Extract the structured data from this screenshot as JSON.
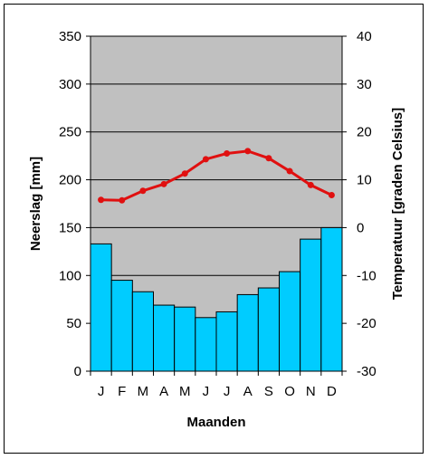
{
  "chart_data": {
    "type": "bar+line",
    "categories": [
      "J",
      "F",
      "M",
      "A",
      "M",
      "J",
      "J",
      "A",
      "S",
      "O",
      "N",
      "D"
    ],
    "series": [
      {
        "name": "Neerslag",
        "type": "bar",
        "axis": "left",
        "color": "#00CCFF",
        "values": [
          133,
          95,
          83,
          69,
          67,
          56,
          62,
          80,
          87,
          104,
          138,
          150
        ]
      },
      {
        "name": "Temperatuur",
        "type": "line",
        "axis": "right",
        "color": "#E01010",
        "values": [
          5.8,
          5.7,
          7.7,
          9.1,
          11.3,
          14.3,
          15.5,
          16.0,
          14.5,
          11.8,
          8.9,
          6.8
        ]
      }
    ],
    "xlabel": "Maanden",
    "ylabel_left": "Neerslag [mm]",
    "ylabel_right": "Temperatuur [graden Celsius]",
    "ylim_left": [
      0,
      350
    ],
    "ylim_right": [
      -30,
      40
    ],
    "yticks_left": [
      "0",
      "50",
      "100",
      "150",
      "200",
      "250",
      "300",
      "350"
    ],
    "yticks_right": [
      "-30",
      "-20",
      "-10",
      "0",
      "10",
      "20",
      "30",
      "40"
    ],
    "grid": true,
    "plot_background": "#C0C0C0"
  }
}
